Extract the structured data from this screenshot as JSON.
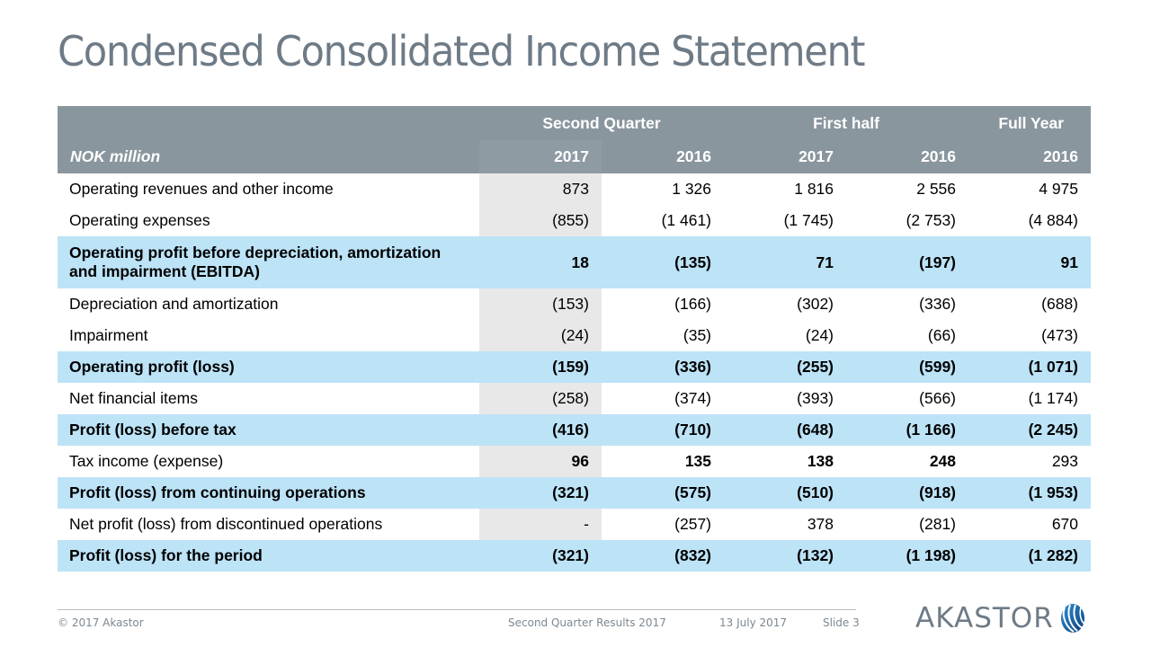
{
  "slide": {
    "title": "Condensed Consolidated Income Statement"
  },
  "table": {
    "group_headers": [
      "Second Quarter",
      "First half",
      "Full Year"
    ],
    "unit_label": "NOK million",
    "years": [
      "2017",
      "2016",
      "2017",
      "2016",
      "2016"
    ],
    "rows": [
      {
        "label": "Operating revenues and other income",
        "values": [
          "873",
          "1 326",
          "1 816",
          "2 556",
          "4 975"
        ]
      },
      {
        "label": "Operating expenses",
        "values": [
          "(855)",
          "(1 461)",
          "(1 745)",
          "(2 753)",
          "(4 884)"
        ]
      },
      {
        "label": "Operating profit before depreciation, amortization and impairment (EBITDA)",
        "values": [
          "18",
          "(135)",
          "71",
          "(197)",
          "91"
        ]
      },
      {
        "label": "Depreciation and amortization",
        "values": [
          "(153)",
          "(166)",
          "(302)",
          "(336)",
          "(688)"
        ]
      },
      {
        "label": "Impairment",
        "values": [
          "(24)",
          "(35)",
          "(24)",
          "(66)",
          "(473)"
        ]
      },
      {
        "label": "Operating profit (loss)",
        "values": [
          "(159)",
          "(336)",
          "(255)",
          "(599)",
          "(1 071)"
        ]
      },
      {
        "label": "Net financial items",
        "values": [
          "(258)",
          "(374)",
          "(393)",
          "(566)",
          "(1 174)"
        ]
      },
      {
        "label": "Profit (loss) before tax",
        "values": [
          "(416)",
          "(710)",
          "(648)",
          "(1 166)",
          "(2 245)"
        ]
      },
      {
        "label": "Tax income (expense)",
        "values": [
          "96",
          "135",
          "138",
          "248",
          "293"
        ]
      },
      {
        "label": "Profit (loss) from continuing operations",
        "values": [
          "(321)",
          "(575)",
          "(510)",
          "(918)",
          "(1 953)"
        ]
      },
      {
        "label": "Net profit (loss) from discontinued operations",
        "values": [
          "-",
          "(257)",
          "378",
          "(281)",
          "670"
        ]
      },
      {
        "label": "Profit (loss) for the period",
        "values": [
          "(321)",
          "(832)",
          "(132)",
          "(1 198)",
          "(1 282)"
        ]
      }
    ]
  },
  "footer": {
    "copyright": "© 2017 Akastor",
    "presentation": "Second Quarter Results 2017",
    "date": "13 July 2017",
    "slide_number": "Slide 3",
    "logo_text": "AKASTOR"
  },
  "colors": {
    "title": "#6e7b86",
    "header_bg": "#8a969e",
    "subtotal_bg": "#bde3f7",
    "current_col_bg": "#e8e8e8"
  }
}
